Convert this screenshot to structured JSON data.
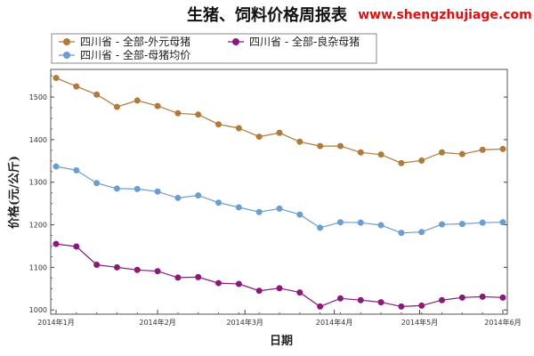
{
  "header": {
    "title": "生猪、饲料价格周报表",
    "website": "www.shengzhujiage.com"
  },
  "chart_data": {
    "type": "line",
    "title": "生猪、饲料价格周报表",
    "xlabel": "日期",
    "ylabel": "价格(元/公斤)",
    "ylim": [
      990,
      1565
    ],
    "y_ticks": [
      1000,
      1100,
      1200,
      1300,
      1400,
      1500
    ],
    "x_tick_labels": [
      "2014年1月",
      "2014年2月",
      "2014年3月",
      "2014年4月",
      "2014年5月",
      "2014年6月"
    ],
    "x_tick_weeks": [
      0,
      5,
      9.3,
      13.7,
      17.9,
      22
    ],
    "grid": false,
    "legend_position": "top",
    "series": [
      {
        "name": "四川省 - 全部-外元母猪",
        "color": "#b07a3a",
        "values": [
          1545,
          1525,
          1506,
          1477,
          1492,
          1479,
          1462,
          1459,
          1436,
          1427,
          1407,
          1416,
          1395,
          1385,
          1385,
          1370,
          1365,
          1345,
          1351,
          1370,
          1366,
          1376,
          1378
        ]
      },
      {
        "name": "四川省 - 全部-良杂母猪",
        "color": "#8a1a7a",
        "values": [
          1155,
          1149,
          1106,
          1100,
          1094,
          1091,
          1076,
          1077,
          1063,
          1061,
          1045,
          1051,
          1041,
          1008,
          1027,
          1023,
          1018,
          1008,
          1010,
          1023,
          1029,
          1031,
          1029
        ]
      },
      {
        "name": "四川省 - 全部-母猪均价",
        "color": "#6a9ed0",
        "values": [
          1337,
          1328,
          1298,
          1285,
          1284,
          1278,
          1263,
          1269,
          1252,
          1241,
          1230,
          1238,
          1224,
          1193,
          1206,
          1205,
          1199,
          1181,
          1183,
          1201,
          1202,
          1205,
          1206
        ]
      }
    ]
  }
}
